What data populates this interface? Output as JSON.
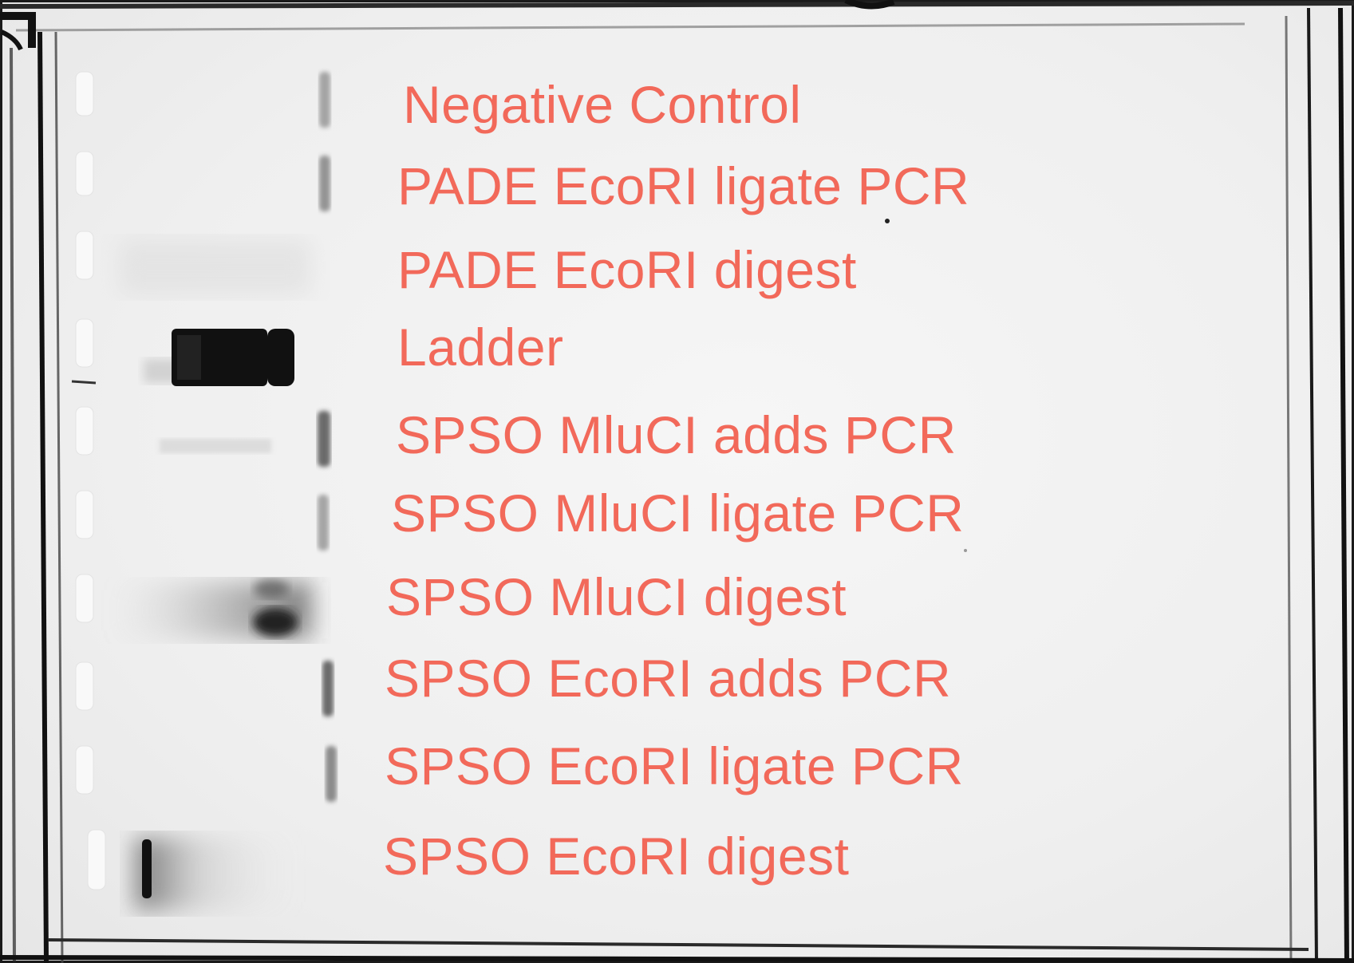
{
  "label_color": "#f2695a",
  "band_color": "#111111",
  "lanes": [
    {
      "label": "Negative Control"
    },
    {
      "label": "PADE EcoRI ligate PCR"
    },
    {
      "label": "PADE EcoRI digest"
    },
    {
      "label": "Ladder"
    },
    {
      "label": "SPSO MluCI adds PCR"
    },
    {
      "label": "SPSO MluCI ligate PCR"
    },
    {
      "label": "SPSO MluCI digest"
    },
    {
      "label": "SPSO EcoRI adds PCR"
    },
    {
      "label": "SPSO EcoRI ligate PCR"
    },
    {
      "label": "SPSO EcoRI digest"
    }
  ]
}
